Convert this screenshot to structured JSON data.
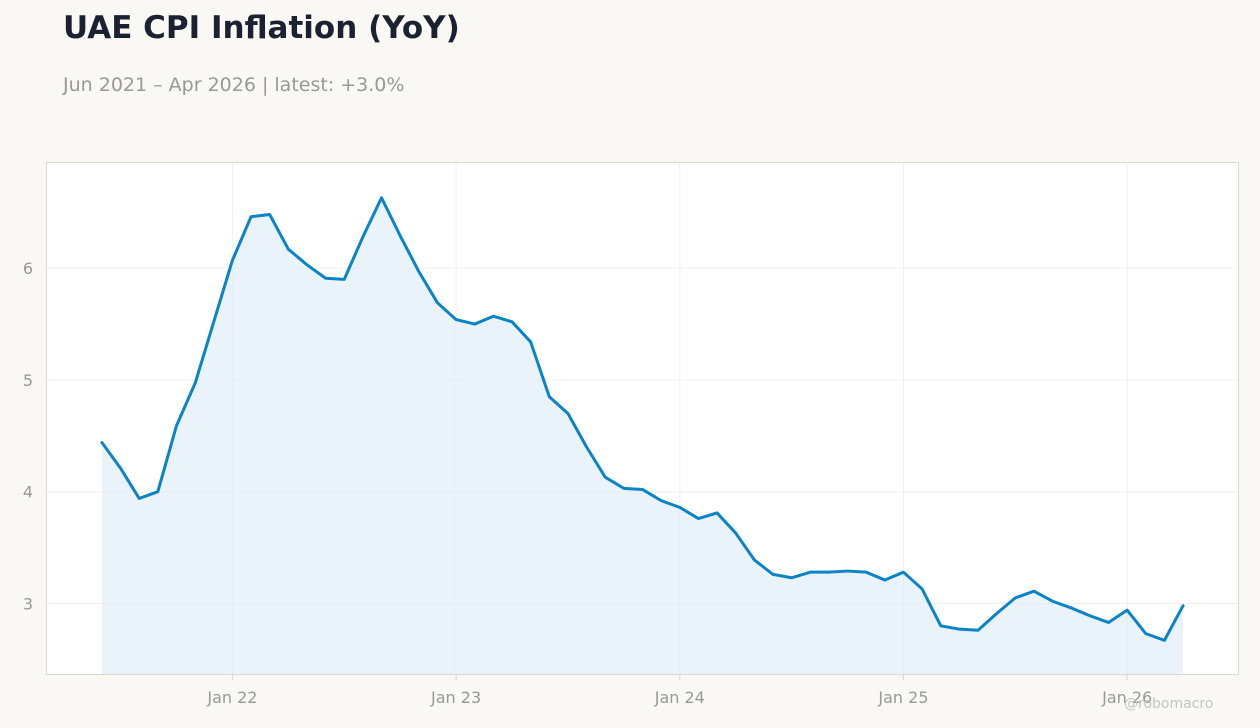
{
  "header": {
    "title": "UAE CPI Inflation (YoY)",
    "subtitle": "Jun 2021 – Apr 2026 | latest: +3.0%"
  },
  "watermark": "@robomacro",
  "colors": {
    "background": "#f9f8f5",
    "plot_background": "#ffffff",
    "line": "#0a84c6",
    "fill": "#dcebf7",
    "grid": "#f0f0f0",
    "tick_text": "#9b9791"
  },
  "chart_data": {
    "type": "area",
    "title": "UAE CPI Inflation (YoY)",
    "subtitle": "Jun 2021 – Apr 2026 | latest: +3.0%",
    "xlabel": "",
    "ylabel": "",
    "x_tick_labels": [
      "Jan 22",
      "Jan 23",
      "Jan 24",
      "Jan 25",
      "Jan 26"
    ],
    "y_tick_labels": [
      "3",
      "4",
      "5",
      "6"
    ],
    "ylim": [
      2.36,
      6.95
    ],
    "xlim": [
      "2021-03",
      "2026-07"
    ],
    "grid": true,
    "series": [
      {
        "x": [
          "2021-06",
          "2021-07",
          "2021-08",
          "2021-09",
          "2021-10",
          "2021-11",
          "2021-12",
          "2022-01",
          "2022-02",
          "2022-03",
          "2022-04",
          "2022-05",
          "2022-06",
          "2022-07",
          "2022-08",
          "2022-09",
          "2022-10",
          "2022-11",
          "2022-12",
          "2023-01",
          "2023-02",
          "2023-03",
          "2023-04",
          "2023-05",
          "2023-06",
          "2023-07",
          "2023-08",
          "2023-09",
          "2023-10",
          "2023-11",
          "2023-12",
          "2024-01",
          "2024-02",
          "2024-03",
          "2024-04",
          "2024-05",
          "2024-06",
          "2024-07",
          "2024-08",
          "2024-09",
          "2024-10",
          "2024-11",
          "2024-12",
          "2025-01",
          "2025-02",
          "2025-03",
          "2025-04",
          "2025-05",
          "2025-06",
          "2025-07",
          "2025-08",
          "2025-09",
          "2025-10",
          "2025-11",
          "2025-12",
          "2026-01",
          "2026-02",
          "2026-03",
          "2026-04"
        ],
        "values": [
          4.44,
          4.21,
          3.94,
          4.0,
          4.59,
          4.97,
          5.52,
          6.07,
          6.46,
          6.48,
          6.17,
          6.03,
          5.91,
          5.9,
          6.28,
          6.63,
          6.29,
          5.97,
          5.69,
          5.54,
          5.5,
          5.57,
          5.52,
          5.34,
          4.85,
          4.7,
          4.4,
          4.13,
          4.03,
          4.02,
          3.92,
          3.86,
          3.76,
          3.81,
          3.63,
          3.39,
          3.26,
          3.23,
          3.28,
          3.28,
          3.29,
          3.28,
          3.21,
          3.28,
          3.13,
          2.8,
          2.77,
          2.76,
          2.91,
          3.05,
          3.11,
          3.02,
          2.96,
          2.89,
          2.83,
          2.94,
          2.73,
          2.67,
          2.98
        ]
      }
    ]
  }
}
